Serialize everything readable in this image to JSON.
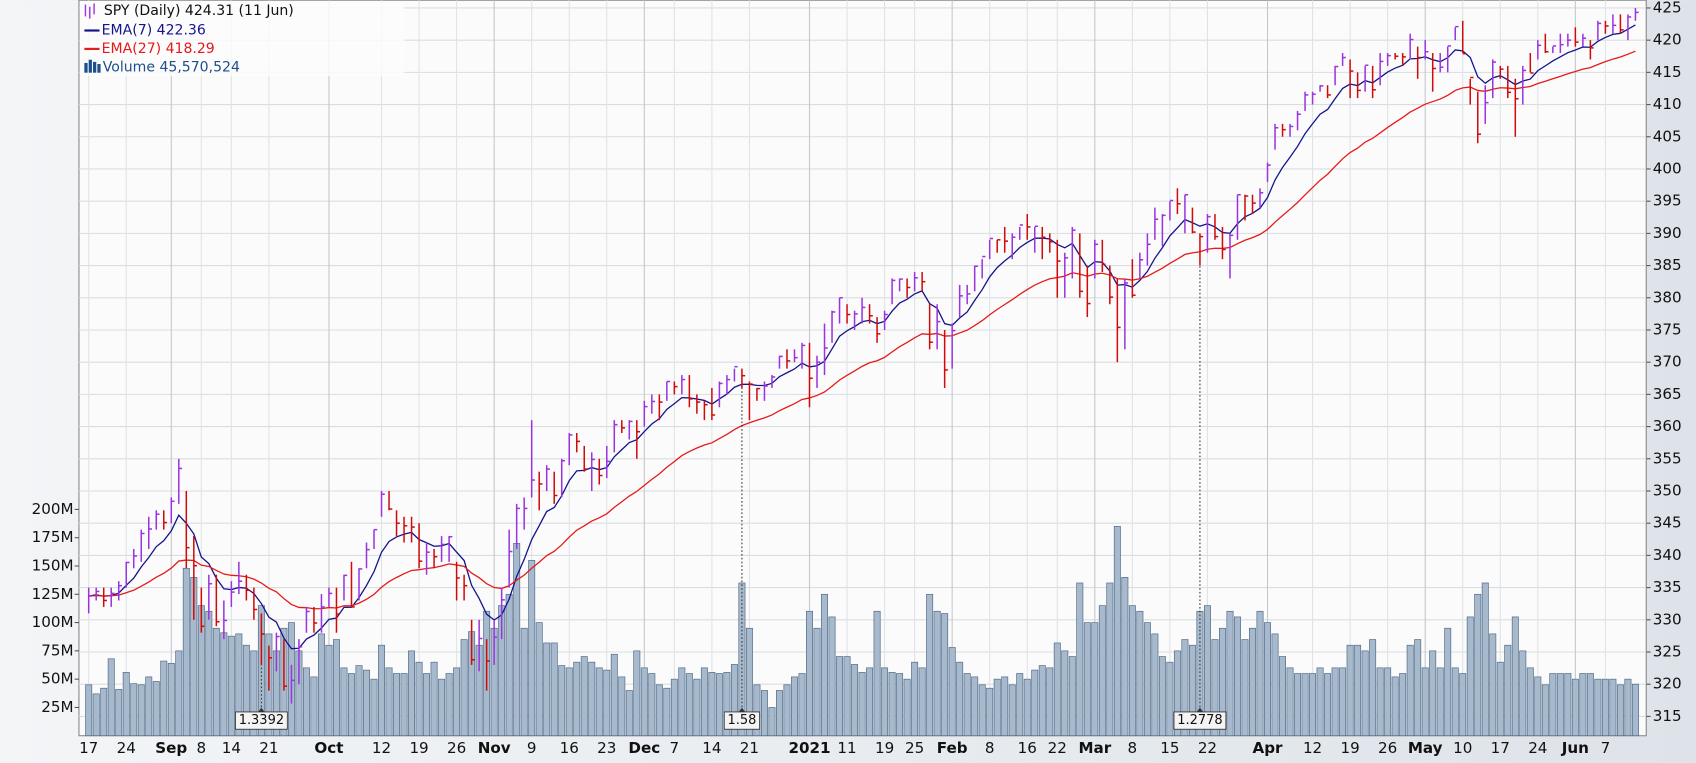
{
  "chart_data": {
    "type": "ohlc",
    "title": "SPY (Daily) 424.31 (11 Jun)",
    "categories": [
      "17",
      null,
      null,
      null,
      null,
      "24",
      null,
      null,
      null,
      null,
      null,
      "Sep",
      null,
      null,
      null,
      "8",
      null,
      null,
      null,
      "14",
      null,
      null,
      null,
      null,
      "21",
      null,
      null,
      null,
      null,
      null,
      null,
      null,
      "Oct",
      null,
      null,
      null,
      null,
      null,
      null,
      "12",
      null,
      null,
      null,
      null,
      "19",
      null,
      null,
      null,
      null,
      "26",
      null,
      null,
      null,
      null,
      "Nov",
      null,
      null,
      null,
      null,
      "9",
      null,
      null,
      null,
      null,
      "16",
      null,
      null,
      null,
      null,
      "23",
      null,
      null,
      null,
      null,
      "Dec",
      null,
      null,
      null,
      "7",
      null,
      null,
      null,
      null,
      "14",
      null,
      null,
      null,
      null,
      "21",
      null,
      null,
      null,
      null,
      null,
      null,
      null,
      "2021",
      null,
      null,
      null,
      null,
      "11",
      null,
      null,
      null,
      null,
      "19",
      null,
      null,
      null,
      "25",
      null,
      null,
      null,
      null,
      "Feb",
      null,
      null,
      null,
      null,
      "8",
      null,
      null,
      null,
      null,
      "16",
      null,
      null,
      null,
      "22",
      null,
      null,
      null,
      null,
      "Mar",
      null,
      null,
      null,
      null,
      "8",
      null,
      null,
      null,
      null,
      "15",
      null,
      null,
      null,
      null,
      "22",
      null,
      null,
      null,
      null,
      null,
      null,
      null,
      "Apr",
      null,
      null,
      null,
      null,
      null,
      "12",
      null,
      null,
      null,
      null,
      "19",
      null,
      null,
      null,
      null,
      "26",
      null,
      null,
      null,
      null,
      "May",
      null,
      null,
      null,
      null,
      "10",
      null,
      null,
      null,
      null,
      "17",
      null,
      null,
      null,
      null,
      "24",
      null,
      null,
      null,
      null,
      "Jun",
      null,
      null,
      null,
      "7",
      null,
      null,
      null,
      null
    ],
    "close": [
      333.7,
      334.4,
      333.0,
      334.1,
      335.3,
      338.9,
      339.9,
      343.4,
      344.1,
      346.4,
      345.1,
      348.4,
      353.5,
      341.2,
      338.4,
      329.0,
      335.6,
      329.7,
      329.9,
      334.3,
      336.0,
      334.6,
      331.6,
      327.8,
      324.1,
      327.4,
      319.7,
      320.6,
      325.8,
      331.3,
      329.5,
      332.0,
      334.1,
      330.9,
      336.9,
      332.0,
      337.9,
      340.9,
      344.0,
      349.5,
      347.2,
      345.0,
      344.6,
      344.4,
      339.1,
      340.5,
      339.8,
      341.7,
      342.9,
      336.5,
      335.3,
      323.8,
      327.1,
      323.6,
      327.3,
      333.1,
      340.6,
      347.3,
      347.3,
      351.7,
      351.1,
      353.4,
      349.3,
      354.7,
      358.7,
      357.7,
      353.4,
      354.9,
      352.4,
      354.6,
      360.3,
      359.8,
      360.8,
      359.2,
      363.1,
      363.9,
      363.8,
      367.0,
      366.2,
      367.3,
      364.3,
      363.8,
      363.4,
      361.8,
      366.7,
      367.3,
      369.3,
      367.9,
      366.6,
      365.9,
      366.3,
      367.7,
      370.9,
      370.2,
      370.7,
      372.6,
      367.5,
      370.0,
      372.2,
      377.8,
      380.0,
      377.4,
      377.5,
      378.5,
      377.2,
      374.4,
      377.4,
      382.7,
      382.9,
      381.6,
      383.1,
      382.5,
      373.1,
      376.3,
      368.8,
      374.9,
      380.3,
      380.6,
      384.9,
      386.4,
      389.2,
      389.0,
      388.8,
      389.4,
      391.3,
      391.0,
      391.1,
      389.4,
      388.7,
      385.7,
      386.2,
      390.5,
      381.0,
      379.1,
      388.3,
      385.2,
      380.1,
      375.4,
      382.3,
      380.4,
      385.9,
      388.3,
      392.2,
      392.8,
      395.1,
      394.6,
      396.0,
      390.2,
      389.5,
      392.6,
      389.5,
      387.5,
      389.7,
      396.0,
      395.8,
      394.7,
      396.3,
      400.6,
      406.4,
      406.1,
      406.6,
      408.5,
      411.5,
      411.6,
      412.9,
      411.5,
      415.9,
      417.3,
      415.2,
      412.2,
      416.1,
      412.3,
      416.7,
      417.6,
      417.5,
      417.4,
      420.1,
      417.3,
      418.2,
      415.6,
      415.8,
      419.1,
      422.1,
      417.9,
      414.2,
      405.4,
      410.3,
      416.6,
      415.5,
      411.9,
      410.9,
      415.3,
      414.9,
      419.2,
      418.2,
      419.1,
      419.3,
      420.0,
      419.7,
      420.3,
      418.8,
      422.6,
      422.2,
      422.3,
      421.6,
      423.6,
      424.31
    ],
    "high": [
      335,
      335,
      335,
      335,
      336,
      339,
      341,
      344,
      346,
      347,
      347,
      349,
      355,
      350,
      343,
      335,
      337,
      337,
      333,
      336,
      339,
      337,
      335,
      331,
      326,
      328,
      327,
      323,
      327,
      332,
      332,
      334,
      335,
      335,
      337,
      339,
      338,
      342,
      344,
      350,
      350,
      347,
      346,
      346,
      345,
      342,
      341,
      343,
      343,
      339,
      337,
      330,
      330,
      327,
      330,
      335,
      344,
      348,
      349,
      361,
      353,
      354,
      353,
      355,
      359,
      359,
      357,
      356,
      355,
      357,
      361,
      361,
      361,
      361,
      364,
      365,
      365,
      367,
      367,
      368,
      368,
      365,
      364,
      366,
      367,
      368,
      369,
      369,
      367,
      366,
      367,
      368,
      371,
      372,
      372,
      373,
      373,
      371,
      376,
      378,
      380,
      379,
      378,
      380,
      379,
      377,
      378,
      383,
      383,
      383,
      384,
      384,
      379,
      379,
      375,
      376,
      382,
      382,
      385,
      386,
      389,
      389,
      391,
      390,
      391,
      393,
      391,
      391,
      390,
      389,
      387,
      391,
      390,
      385,
      389,
      389,
      385,
      383,
      383,
      386,
      387,
      390,
      394,
      393,
      395,
      397,
      396,
      394,
      390,
      393,
      393,
      391,
      390,
      396,
      396,
      396,
      397,
      401,
      407,
      407,
      407,
      409,
      412,
      412,
      413,
      413,
      416,
      418,
      417,
      415,
      416,
      416,
      418,
      418,
      418,
      418,
      421,
      419,
      420,
      418,
      418,
      419,
      422,
      423,
      414,
      412,
      413,
      417,
      416,
      416,
      414,
      416,
      418,
      420,
      421,
      419,
      421,
      421,
      422,
      421,
      420,
      423,
      423,
      424,
      424,
      424,
      425
    ],
    "low": [
      331,
      333,
      332,
      332,
      333,
      335,
      338,
      339,
      341,
      344,
      344,
      345,
      348,
      338,
      330,
      328,
      330,
      329,
      327,
      332,
      334,
      333,
      330,
      323,
      319,
      322,
      319,
      317,
      320,
      328,
      328,
      328,
      332,
      328,
      333,
      332,
      333,
      338,
      341,
      346,
      347,
      343,
      342,
      342,
      338,
      337,
      338,
      339,
      339,
      333,
      333,
      323,
      322,
      319,
      323,
      327,
      335,
      341,
      344,
      349,
      347,
      350,
      348,
      349,
      354,
      356,
      353,
      350,
      351,
      352,
      356,
      359,
      358,
      355,
      360,
      362,
      361,
      364,
      365,
      365,
      363,
      362,
      361,
      361,
      363,
      365,
      367,
      366,
      361,
      364,
      364,
      366,
      369,
      369,
      370,
      369,
      363,
      366,
      368,
      373,
      376,
      376,
      375,
      376,
      376,
      373,
      375,
      379,
      381,
      380,
      381,
      381,
      372,
      372,
      366,
      369,
      377,
      379,
      381,
      383,
      386,
      387,
      387,
      386,
      389,
      389,
      387,
      386,
      387,
      380,
      380,
      383,
      380,
      377,
      383,
      384,
      379,
      370,
      372,
      380,
      383,
      385,
      389,
      388,
      392,
      393,
      390,
      390,
      385,
      387,
      389,
      386,
      383,
      389,
      392,
      393,
      394,
      398,
      403,
      405,
      405,
      406,
      409,
      410,
      412,
      411,
      413,
      416,
      411,
      411,
      412,
      411,
      413,
      416,
      417,
      416,
      417,
      414,
      417,
      412,
      415,
      415,
      420,
      418,
      410,
      404,
      407,
      411,
      414,
      411,
      405,
      410,
      415,
      417,
      418,
      418,
      418,
      419,
      419,
      419,
      417,
      420,
      421,
      421,
      421,
      420,
      423
    ],
    "up_color": "#9a34e0",
    "down_color": "#d10a0a",
    "ylim": [
      312,
      426.2
    ],
    "yticks": [
      315,
      320,
      325,
      330,
      335,
      340,
      345,
      350,
      355,
      360,
      365,
      370,
      375,
      380,
      385,
      390,
      395,
      400,
      405,
      410,
      415,
      420,
      425
    ],
    "grid": true,
    "indicators": [
      {
        "name": "EMA(7)",
        "period": 7,
        "last": 422.36,
        "color": "#14148c"
      },
      {
        "name": "EMA(27)",
        "period": 27,
        "last": 418.29,
        "color": "#e51a1a"
      }
    ],
    "volume": {
      "name": "Volume",
      "last_label": "45,570,524",
      "color": "#a6b9cd",
      "edge_color": "#4d6682",
      "ylim": [
        0,
        650000000
      ],
      "yticks": [
        {
          "value": 25000000,
          "label": "25M"
        },
        {
          "value": 50000000,
          "label": "50M"
        },
        {
          "value": 75000000,
          "label": "75M"
        },
        {
          "value": 100000000,
          "label": "100M"
        },
        {
          "value": 125000000,
          "label": "125M"
        },
        {
          "value": 150000000,
          "label": "150M"
        },
        {
          "value": 175000000,
          "label": "175M"
        },
        {
          "value": 200000000,
          "label": "200M"
        }
      ],
      "values": [
        45000000.0,
        37000000.0,
        42000000.0,
        68000000.0,
        41000000.0,
        56000000.0,
        46000000.0,
        45000000.0,
        52000000.0,
        48000000.0,
        66000000.0,
        64000000.0,
        75000000.0,
        148000000.0,
        140000000.0,
        115000000.0,
        110000000.0,
        95000000.0,
        91000000.0,
        88000000.0,
        90000000.0,
        80000000.0,
        75000000.0,
        115000000.0,
        90000000.0,
        75000000.0,
        95000000.0,
        100000000.0,
        75000000.0,
        60000000.0,
        52000000.0,
        90000000.0,
        80000000.0,
        85000000.0,
        60000000.0,
        55000000.0,
        62000000.0,
        58000000.0,
        50000000.0,
        80000000.0,
        60000000.0,
        55000000.0,
        55000000.0,
        75000000.0,
        65000000.0,
        55000000.0,
        65000000.0,
        50000000.0,
        55000000.0,
        60000000.0,
        85000000.0,
        92000000.0,
        80000000.0,
        110000000.0,
        95000000.0,
        115000000.0,
        125000000.0,
        170000000.0,
        95000000.0,
        155000000.0,
        100000000.0,
        82000000.0,
        82000000.0,
        62000000.0,
        60000000.0,
        65000000.0,
        70000000.0,
        65000000.0,
        60000000.0,
        58000000.0,
        72000000.0,
        52000000.0,
        40000000.0,
        75000000.0,
        60000000.0,
        55000000.0,
        45000000.0,
        42000000.0,
        50000000.0,
        60000000.0,
        55000000.0,
        50000000.0,
        60000000.0,
        56000000.0,
        55000000.0,
        56000000.0,
        63000000.0,
        135000000.0,
        95000000.0,
        45000000.0,
        40000000.0,
        25000000.0,
        40000000.0,
        45000000.0,
        52000000.0,
        55000000.0,
        110000000.0,
        95000000.0,
        125000000.0,
        105000000.0,
        70000000.0,
        70000000.0,
        63000000.0,
        56000000.0,
        60000000.0,
        110000000.0,
        60000000.0,
        56000000.0,
        55000000.0,
        50000000.0,
        65000000.0,
        60000000.0,
        125000000.0,
        110000000.0,
        108000000.0,
        78000000.0,
        65000000.0,
        55000000.0,
        52000000.0,
        45000000.0,
        42000000.0,
        50000000.0,
        52000000.0,
        45000000.0,
        55000000.0,
        50000000.0,
        58000000.0,
        62000000.0,
        60000000.0,
        82000000.0,
        75000000.0,
        70000000.0,
        135000000.0,
        100000000.0,
        100000000.0,
        115000000.0,
        135000000.0,
        185000000.0,
        140000000.0,
        115000000.0,
        110000000.0,
        100000000.0,
        90000000.0,
        70000000.0,
        65000000.0,
        75000000.0,
        85000000.0,
        80000000.0,
        110000000.0,
        115000000.0,
        85000000.0,
        95000000.0,
        110000000.0,
        105000000.0,
        85000000.0,
        95000000.0,
        110000000.0,
        100000000.0,
        90000000.0,
        70000000.0,
        60000000.0,
        55000000.0,
        55000000.0,
        55000000.0,
        60000000.0,
        55000000.0,
        60000000.0,
        60000000.0,
        80000000.0,
        80000000.0,
        75000000.0,
        85000000.0,
        60000000.0,
        60000000.0,
        52000000.0,
        55000000.0,
        80000000.0,
        85000000.0,
        60000000.0,
        75000000.0,
        60000000.0,
        95000000.0,
        60000000.0,
        55000000.0,
        105000000.0,
        125000000.0,
        135000000.0,
        90000000.0,
        65000000.0,
        80000000.0,
        105000000.0,
        75000000.0,
        60000000.0,
        52000000.0,
        45000000.0,
        55000000.0,
        55000000.0,
        55000000.0,
        50000000.0,
        55000000.0,
        55000000.0,
        50000000.0,
        50000000.0,
        50000000.0,
        45000000.0,
        50000000.0,
        45570524
      ]
    },
    "dividends": {
      "at": [
        23,
        87,
        148
      ],
      "values": [
        1.3392,
        1.58,
        1.2778
      ]
    }
  }
}
